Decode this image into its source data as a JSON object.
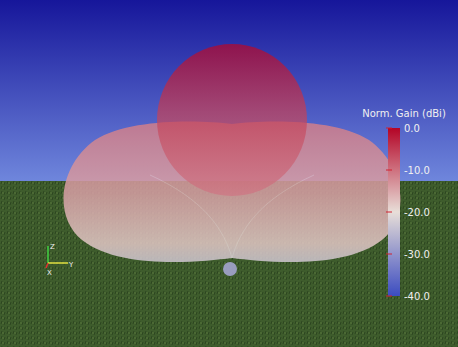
{
  "chart_data": {
    "type": "radiation_pattern",
    "colorbar_title": "Norm. Gain (dBi)",
    "color_range": [
      -40,
      0
    ],
    "color_ticks": [
      {
        "value": 0,
        "label": "0.0"
      },
      {
        "value": -10,
        "label": "-10.0"
      },
      {
        "value": -20,
        "label": "-20.0"
      },
      {
        "value": -30,
        "label": "-30.0"
      },
      {
        "value": -40,
        "label": "-40.0"
      }
    ],
    "axis_labels": [
      "Z",
      "Y",
      "X"
    ]
  }
}
